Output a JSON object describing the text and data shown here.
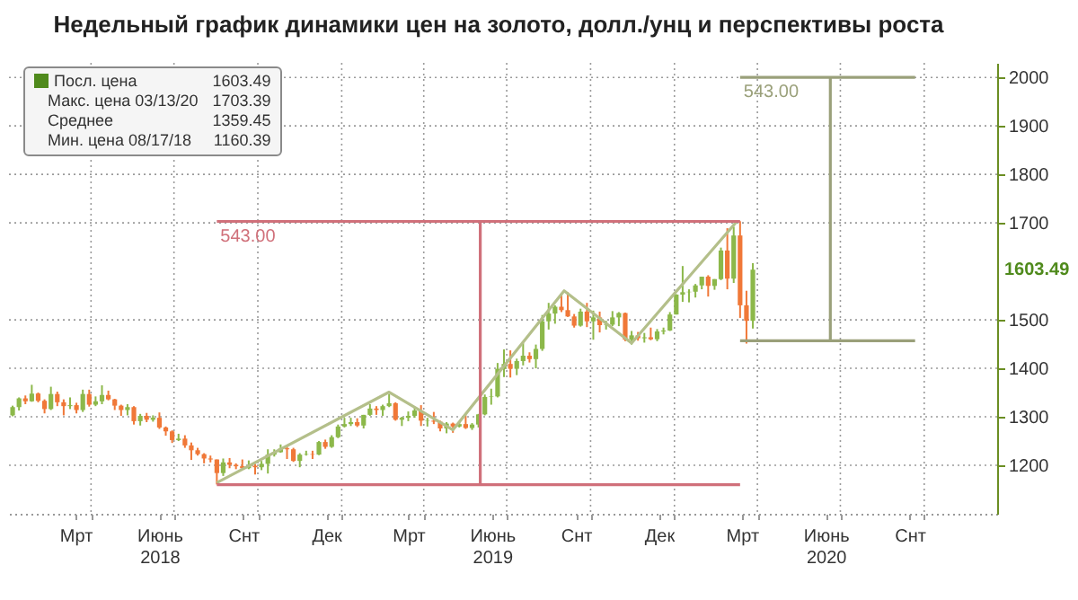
{
  "chart_data": {
    "type": "candlestick",
    "title": "Недельный график динамики цен на золото, долл./унц и перспективы роста",
    "xlim": [
      "2018-01-01",
      "2020-12-20"
    ],
    "xticks": [
      {
        "value": "2018-03-15",
        "label": "Мрт"
      },
      {
        "value": "2018-06-15",
        "label": "Июнь\n2018"
      },
      {
        "value": "2018-09-15",
        "label": "Снт"
      },
      {
        "value": "2018-12-15",
        "label": "Дек"
      },
      {
        "value": "2019-03-15",
        "label": "Мрт"
      },
      {
        "value": "2019-06-15",
        "label": "Июнь\n2019"
      },
      {
        "value": "2019-09-15",
        "label": "Снт"
      },
      {
        "value": "2019-12-15",
        "label": "Дек"
      },
      {
        "value": "2020-03-15",
        "label": "Мрт"
      },
      {
        "value": "2020-06-15",
        "label": "Июнь\n2020"
      },
      {
        "value": "2020-09-15",
        "label": "Снт"
      },
      {
        "value": "2018-04-01",
        "label": null
      },
      {
        "value": "2018-07-01",
        "label": null
      },
      {
        "value": "2018-10-01",
        "label": null
      },
      {
        "value": "2019-01-01",
        "label": null
      },
      {
        "value": "2019-04-01",
        "label": null
      },
      {
        "value": "2019-07-01",
        "label": null
      },
      {
        "value": "2019-10-01",
        "label": null
      },
      {
        "value": "2020-01-01",
        "label": null
      },
      {
        "value": "2020-04-01",
        "label": null
      },
      {
        "value": "2020-07-01",
        "label": null
      },
      {
        "value": "2020-10-01",
        "label": null
      }
    ],
    "ylim": [
      1100,
      2030
    ],
    "yticks": [
      1200,
      1300,
      1400,
      1500,
      1700,
      1800,
      1900,
      2000
    ],
    "grid": true,
    "legend": "top left",
    "series": [
      {
        "type": "candlestick",
        "name": "Посл. цена",
        "color": "#4f8a1c",
        "x": [
          "2018-01-05",
          "2018-01-12",
          "2018-01-19",
          "2018-01-26",
          "2018-02-02",
          "2018-02-09",
          "2018-02-16",
          "2018-02-23",
          "2018-03-02",
          "2018-03-09",
          "2018-03-16",
          "2018-03-23",
          "2018-03-30",
          "2018-04-06",
          "2018-04-13",
          "2018-04-20",
          "2018-04-27",
          "2018-05-04",
          "2018-05-11",
          "2018-05-18",
          "2018-05-25",
          "2018-06-01",
          "2018-06-08",
          "2018-06-15",
          "2018-06-22",
          "2018-06-29",
          "2018-07-06",
          "2018-07-13",
          "2018-07-20",
          "2018-07-27",
          "2018-08-03",
          "2018-08-10",
          "2018-08-17",
          "2018-08-24",
          "2018-08-31",
          "2018-09-07",
          "2018-09-14",
          "2018-09-21",
          "2018-09-28",
          "2018-10-05",
          "2018-10-12",
          "2018-10-19",
          "2018-10-26",
          "2018-11-02",
          "2018-11-09",
          "2018-11-16",
          "2018-11-23",
          "2018-11-30",
          "2018-12-07",
          "2018-12-14",
          "2018-12-21",
          "2018-12-28",
          "2019-01-04",
          "2019-01-11",
          "2019-01-18",
          "2019-01-25",
          "2019-02-01",
          "2019-02-08",
          "2019-02-15",
          "2019-02-22",
          "2019-03-01",
          "2019-03-08",
          "2019-03-15",
          "2019-03-22",
          "2019-03-29",
          "2019-04-05",
          "2019-04-12",
          "2019-04-19",
          "2019-04-26",
          "2019-05-03",
          "2019-05-10",
          "2019-05-17",
          "2019-05-24",
          "2019-05-31",
          "2019-06-07",
          "2019-06-14",
          "2019-06-21",
          "2019-06-28",
          "2019-07-05",
          "2019-07-12",
          "2019-07-19",
          "2019-07-26",
          "2019-08-02",
          "2019-08-09",
          "2019-08-16",
          "2019-08-23",
          "2019-08-30",
          "2019-09-06",
          "2019-09-13",
          "2019-09-20",
          "2019-09-27",
          "2019-10-04",
          "2019-10-11",
          "2019-10-18",
          "2019-10-25",
          "2019-11-01",
          "2019-11-08",
          "2019-11-15",
          "2019-11-22",
          "2019-11-29",
          "2019-12-06",
          "2019-12-13",
          "2019-12-20",
          "2019-12-27",
          "2020-01-03",
          "2020-01-10",
          "2020-01-17",
          "2020-01-24",
          "2020-01-31",
          "2020-02-07",
          "2020-02-14",
          "2020-02-21",
          "2020-02-28",
          "2020-03-06",
          "2020-03-13",
          "2020-03-20",
          "2020-03-27"
        ],
        "ohlc": [
          [
            1303,
            1323,
            1301,
            1320
          ],
          [
            1320,
            1340,
            1313,
            1338
          ],
          [
            1338,
            1344,
            1326,
            1332
          ],
          [
            1332,
            1366,
            1331,
            1348
          ],
          [
            1348,
            1350,
            1330,
            1333
          ],
          [
            1333,
            1336,
            1307,
            1316
          ],
          [
            1316,
            1362,
            1314,
            1347
          ],
          [
            1347,
            1352,
            1322,
            1330
          ],
          [
            1330,
            1336,
            1303,
            1322
          ],
          [
            1322,
            1340,
            1316,
            1324
          ],
          [
            1324,
            1329,
            1307,
            1314
          ],
          [
            1314,
            1356,
            1310,
            1347
          ],
          [
            1347,
            1356,
            1321,
            1325
          ],
          [
            1325,
            1342,
            1322,
            1332
          ],
          [
            1332,
            1365,
            1326,
            1345
          ],
          [
            1345,
            1354,
            1334,
            1336
          ],
          [
            1336,
            1337,
            1314,
            1323
          ],
          [
            1323,
            1325,
            1302,
            1314
          ],
          [
            1314,
            1326,
            1303,
            1320
          ],
          [
            1320,
            1322,
            1284,
            1291
          ],
          [
            1291,
            1306,
            1282,
            1302
          ],
          [
            1302,
            1308,
            1289,
            1294
          ],
          [
            1294,
            1303,
            1290,
            1298
          ],
          [
            1298,
            1309,
            1275,
            1278
          ],
          [
            1278,
            1280,
            1261,
            1270
          ],
          [
            1270,
            1272,
            1246,
            1252
          ],
          [
            1252,
            1265,
            1250,
            1255
          ],
          [
            1255,
            1262,
            1236,
            1241
          ],
          [
            1241,
            1247,
            1211,
            1231
          ],
          [
            1231,
            1236,
            1220,
            1223
          ],
          [
            1223,
            1225,
            1204,
            1214
          ],
          [
            1214,
            1220,
            1206,
            1212
          ],
          [
            1212,
            1212,
            1160.39,
            1184
          ],
          [
            1184,
            1214,
            1178,
            1206
          ],
          [
            1206,
            1215,
            1194,
            1201
          ],
          [
            1201,
            1204,
            1192,
            1198
          ],
          [
            1198,
            1212,
            1191,
            1194
          ],
          [
            1194,
            1210,
            1192,
            1199
          ],
          [
            1199,
            1203,
            1181,
            1196
          ],
          [
            1196,
            1209,
            1190,
            1203
          ],
          [
            1203,
            1233,
            1183,
            1222
          ],
          [
            1222,
            1233,
            1218,
            1227
          ],
          [
            1227,
            1243,
            1226,
            1235
          ],
          [
            1235,
            1239,
            1213,
            1233
          ],
          [
            1233,
            1236,
            1207,
            1209
          ],
          [
            1209,
            1225,
            1196,
            1222
          ],
          [
            1222,
            1230,
            1220,
            1223
          ],
          [
            1223,
            1230,
            1213,
            1222
          ],
          [
            1222,
            1250,
            1221,
            1248
          ],
          [
            1248,
            1253,
            1234,
            1238
          ],
          [
            1238,
            1262,
            1236,
            1258
          ],
          [
            1258,
            1284,
            1256,
            1280
          ],
          [
            1280,
            1298,
            1278,
            1285
          ],
          [
            1285,
            1298,
            1281,
            1289
          ],
          [
            1289,
            1297,
            1279,
            1282
          ],
          [
            1282,
            1304,
            1276,
            1304
          ],
          [
            1304,
            1326,
            1302,
            1317
          ],
          [
            1317,
            1322,
            1304,
            1314
          ],
          [
            1314,
            1325,
            1302,
            1322
          ],
          [
            1322,
            1347,
            1320,
            1328
          ],
          [
            1328,
            1330,
            1292,
            1294
          ],
          [
            1294,
            1300,
            1281,
            1298
          ],
          [
            1298,
            1311,
            1291,
            1302
          ],
          [
            1302,
            1320,
            1298,
            1313
          ],
          [
            1313,
            1324,
            1281,
            1292
          ],
          [
            1292,
            1298,
            1280,
            1293
          ],
          [
            1292,
            1310,
            1285,
            1290
          ],
          [
            1290,
            1292,
            1270,
            1276
          ],
          [
            1276,
            1289,
            1266,
            1286
          ],
          [
            1286,
            1288,
            1267,
            1280
          ],
          [
            1280,
            1290,
            1278,
            1285
          ],
          [
            1285,
            1303,
            1275,
            1277
          ],
          [
            1277,
            1287,
            1273,
            1284
          ],
          [
            1284,
            1306,
            1278,
            1305
          ],
          [
            1305,
            1346,
            1303,
            1341
          ],
          [
            1341,
            1358,
            1325,
            1342
          ],
          [
            1342,
            1411,
            1340,
            1399
          ],
          [
            1399,
            1439,
            1382,
            1409
          ],
          [
            1409,
            1437,
            1381,
            1399
          ],
          [
            1399,
            1420,
            1386,
            1415
          ],
          [
            1415,
            1452,
            1406,
            1426
          ],
          [
            1426,
            1433,
            1412,
            1419
          ],
          [
            1419,
            1449,
            1400,
            1440
          ],
          [
            1440,
            1510,
            1436,
            1497
          ],
          [
            1497,
            1535,
            1480,
            1513
          ],
          [
            1513,
            1530,
            1492,
            1527
          ],
          [
            1527,
            1555,
            1516,
            1520
          ],
          [
            1520,
            1557,
            1506,
            1507
          ],
          [
            1507,
            1512,
            1484,
            1488
          ],
          [
            1488,
            1523,
            1486,
            1517
          ],
          [
            1517,
            1535,
            1485,
            1497
          ],
          [
            1497,
            1519,
            1459,
            1505
          ],
          [
            1505,
            1517,
            1474,
            1489
          ],
          [
            1489,
            1498,
            1480,
            1490
          ],
          [
            1490,
            1518,
            1487,
            1505
          ],
          [
            1505,
            1516,
            1487,
            1514
          ],
          [
            1514,
            1515,
            1456,
            1459
          ],
          [
            1459,
            1477,
            1449,
            1468
          ],
          [
            1468,
            1475,
            1457,
            1462
          ],
          [
            1462,
            1473,
            1453,
            1464
          ],
          [
            1464,
            1484,
            1458,
            1460
          ],
          [
            1460,
            1481,
            1456,
            1476
          ],
          [
            1476,
            1484,
            1470,
            1478
          ],
          [
            1478,
            1516,
            1477,
            1511
          ],
          [
            1511,
            1553,
            1511,
            1552
          ],
          [
            1552,
            1611,
            1537,
            1557
          ],
          [
            1557,
            1563,
            1536,
            1558
          ],
          [
            1558,
            1574,
            1546,
            1571
          ],
          [
            1571,
            1589,
            1563,
            1589
          ],
          [
            1589,
            1592,
            1548,
            1570
          ],
          [
            1570,
            1584,
            1562,
            1584
          ],
          [
            1584,
            1649,
            1582,
            1643
          ],
          [
            1643,
            1689,
            1563,
            1585
          ],
          [
            1585,
            1692,
            1576,
            1674
          ],
          [
            1674,
            1703.39,
            1504,
            1530
          ],
          [
            1530,
            1560,
            1451,
            1498
          ],
          [
            1498,
            1617,
            1482,
            1603.49
          ]
        ],
        "colors": [
          "#8cb84a",
          "#8cb84a",
          "#f07838",
          "#8cb84a",
          "#f07838",
          "#f07838",
          "#8cb84a",
          "#f07838",
          "#f07838",
          "#8cb84a",
          "#f07838",
          "#8cb84a",
          "#f07838",
          "#8cb84a",
          "#8cb84a",
          "#f07838",
          "#f07838",
          "#f07838",
          "#8cb84a",
          "#f07838",
          "#8cb84a",
          "#f07838",
          "#8cb84a",
          "#f07838",
          "#f07838",
          "#f07838",
          "#8cb84a",
          "#f07838",
          "#f07838",
          "#f07838",
          "#f07838",
          "#f07838",
          "#f07838",
          "#8cb84a",
          "#f07838",
          "#f07838",
          "#f07838",
          "#8cb84a",
          "#f07838",
          "#8cb84a",
          "#8cb84a",
          "#8cb84a",
          "#8cb84a",
          "#f07838",
          "#f07838",
          "#8cb84a",
          "#8cb84a",
          "#f07838",
          "#8cb84a",
          "#f07838",
          "#8cb84a",
          "#8cb84a",
          "#8cb84a",
          "#8cb84a",
          "#f07838",
          "#8cb84a",
          "#8cb84a",
          "#f07838",
          "#8cb84a",
          "#8cb84a",
          "#f07838",
          "#8cb84a",
          "#8cb84a",
          "#8cb84a",
          "#f07838",
          "#8cb84a",
          "#f07838",
          "#f07838",
          "#8cb84a",
          "#f07838",
          "#8cb84a",
          "#f07838",
          "#8cb84a",
          "#8cb84a",
          "#8cb84a",
          "#8cb84a",
          "#8cb84a",
          "#8cb84a",
          "#f07838",
          "#8cb84a",
          "#8cb84a",
          "#f07838",
          "#8cb84a",
          "#8cb84a",
          "#8cb84a",
          "#8cb84a",
          "#f07838",
          "#f07838",
          "#f07838",
          "#8cb84a",
          "#f07838",
          "#8cb84a",
          "#f07838",
          "#8cb84a",
          "#8cb84a",
          "#8cb84a",
          "#f07838",
          "#8cb84a",
          "#f07838",
          "#8cb84a",
          "#f07838",
          "#8cb84a",
          "#8cb84a",
          "#8cb84a",
          "#8cb84a",
          "#8cb84a",
          "#8cb84a",
          "#8cb84a",
          "#8cb84a",
          "#f07838",
          "#8cb84a",
          "#8cb84a",
          "#f07838",
          "#8cb84a",
          "#f07838",
          "#f07838",
          "#8cb84a"
        ]
      },
      {
        "type": "line",
        "color": "#b4bf8a",
        "x": [
          "2018-08-17",
          "2019-02-22",
          "2019-05-03",
          "2019-09-02",
          "2019-11-15",
          "2020-03-09"
        ],
        "values": [
          1164,
          1351,
          1273,
          1560,
          1452,
          1702
        ]
      },
      {
        "type": "line",
        "color": "#d0707a",
        "x": [
          "2018-08-17",
          "2020-03-13"
        ],
        "values": [
          1703,
          1703
        ]
      },
      {
        "type": "line",
        "color": "#d0707a",
        "x": [
          "2018-08-17",
          "2020-03-13"
        ],
        "values": [
          1160,
          1160
        ]
      },
      {
        "type": "line",
        "color": "#d0707a",
        "x": [
          "2019-06-02",
          "2019-06-02"
        ],
        "values": [
          1160,
          1703
        ]
      },
      {
        "type": "line",
        "color": "#9aa07a",
        "x": [
          "2020-03-13",
          "2020-09-21"
        ],
        "values": [
          2000,
          2000
        ]
      },
      {
        "type": "line",
        "color": "#9aa07a",
        "x": [
          "2020-03-13",
          "2020-09-21"
        ],
        "values": [
          1457,
          1457
        ]
      },
      {
        "type": "line",
        "color": "#9aa07a",
        "x": [
          "2020-06-20",
          "2020-06-20"
        ],
        "values": [
          1457,
          2000
        ]
      }
    ],
    "annotations": [
      {
        "text": "543.00",
        "x": "2018-08-17",
        "y": 1703
      },
      {
        "text": "543.00",
        "x": "2020-03-13",
        "y": 2000
      },
      "1603.49",
      "Макс. цена 03/13/20 1703.39",
      "Среднее 1359.45",
      "Мин. цена 08/17/18 1160.39",
      "1603.49"
    ]
  }
}
